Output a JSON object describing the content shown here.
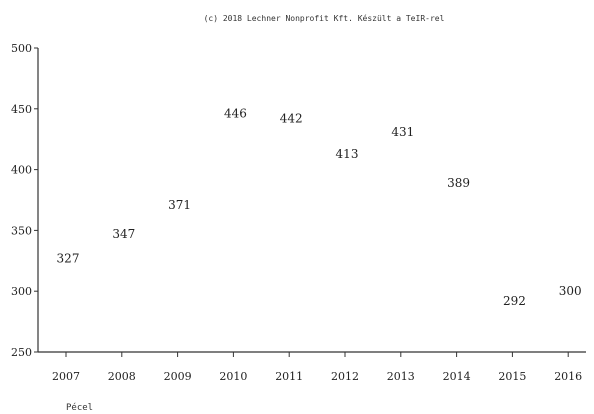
{
  "chart_data": {
    "type": "scatter",
    "title": "(c) 2018 Lechner Nonprofit Kft. Készült a TeIR-rel",
    "footer_label": "Pécel",
    "x": [
      "2007",
      "2008",
      "2009",
      "2010",
      "2011",
      "2012",
      "2013",
      "2014",
      "2015",
      "2016"
    ],
    "values": [
      327,
      347,
      371,
      446,
      442,
      413,
      431,
      389,
      292,
      300
    ],
    "ylim": [
      250,
      500
    ],
    "yticks": [
      250,
      300,
      350,
      400,
      450,
      500
    ],
    "grid": false,
    "legend": "none"
  }
}
